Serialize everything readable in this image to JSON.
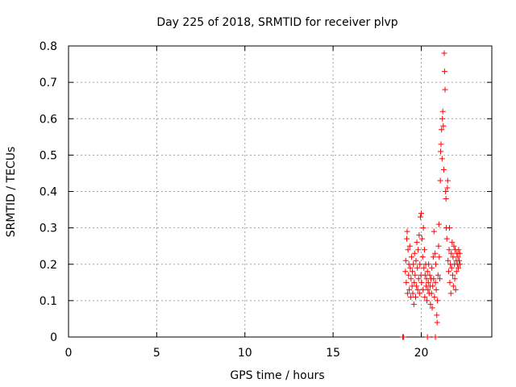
{
  "chart_data": {
    "type": "scatter",
    "title": "Day 225 of 2018, SRMTID for receiver plvp",
    "xlabel": "GPS time / hours",
    "ylabel": "SRMTID / TECUs",
    "xlim": [
      0,
      24
    ],
    "ylim": [
      0,
      0.8
    ],
    "xticks": [
      0,
      5,
      10,
      15,
      20
    ],
    "xtick_labels": [
      "0",
      "5",
      "10",
      "15",
      "20"
    ],
    "yticks": [
      0,
      0.1,
      0.2,
      0.3,
      0.4,
      0.5,
      0.6,
      0.7,
      0.8
    ],
    "ytick_labels": [
      "0",
      "0.1",
      "0.2",
      "0.3",
      "0.4",
      "0.5",
      "0.6",
      "0.7",
      "0.8"
    ],
    "grid": true,
    "marker": "plus",
    "color": "#ff0000",
    "series": [
      {
        "name": "SRMTID",
        "points": [
          [
            18.95,
            0.0
          ],
          [
            19.0,
            0.0
          ],
          [
            20.35,
            0.0
          ],
          [
            20.8,
            0.0
          ],
          [
            19.1,
            0.18
          ],
          [
            19.12,
            0.21
          ],
          [
            19.15,
            0.15
          ],
          [
            19.18,
            0.27
          ],
          [
            19.2,
            0.29
          ],
          [
            19.22,
            0.12
          ],
          [
            19.25,
            0.24
          ],
          [
            19.28,
            0.17
          ],
          [
            19.3,
            0.2
          ],
          [
            19.32,
            0.13
          ],
          [
            19.35,
            0.25
          ],
          [
            19.38,
            0.19
          ],
          [
            19.4,
            0.11
          ],
          [
            19.42,
            0.16
          ],
          [
            19.45,
            0.22
          ],
          [
            19.48,
            0.14
          ],
          [
            19.5,
            0.18
          ],
          [
            19.52,
            0.12
          ],
          [
            19.55,
            0.2
          ],
          [
            19.58,
            0.09
          ],
          [
            19.6,
            0.15
          ],
          [
            19.62,
            0.23
          ],
          [
            19.65,
            0.17
          ],
          [
            19.68,
            0.11
          ],
          [
            19.7,
            0.21
          ],
          [
            19.72,
            0.14
          ],
          [
            19.75,
            0.26
          ],
          [
            19.78,
            0.19
          ],
          [
            19.8,
            0.13
          ],
          [
            19.82,
            0.24
          ],
          [
            19.85,
            0.16
          ],
          [
            19.88,
            0.28
          ],
          [
            19.9,
            0.12
          ],
          [
            19.92,
            0.2
          ],
          [
            19.95,
            0.33
          ],
          [
            19.98,
            0.17
          ],
          [
            20.0,
            0.34
          ],
          [
            20.02,
            0.15
          ],
          [
            20.05,
            0.27
          ],
          [
            20.08,
            0.22
          ],
          [
            20.1,
            0.13
          ],
          [
            20.12,
            0.3
          ],
          [
            20.15,
            0.19
          ],
          [
            20.18,
            0.24
          ],
          [
            20.2,
            0.11
          ],
          [
            20.22,
            0.17
          ],
          [
            20.25,
            0.2
          ],
          [
            20.28,
            0.14
          ],
          [
            20.3,
            0.16
          ],
          [
            20.32,
            0.1
          ],
          [
            20.35,
            0.18
          ],
          [
            20.38,
            0.13
          ],
          [
            20.4,
            0.15
          ],
          [
            20.42,
            0.2
          ],
          [
            20.45,
            0.12
          ],
          [
            20.48,
            0.17
          ],
          [
            20.5,
            0.14
          ],
          [
            20.52,
            0.09
          ],
          [
            20.55,
            0.16
          ],
          [
            20.58,
            0.12
          ],
          [
            20.6,
            0.19
          ],
          [
            20.62,
            0.08
          ],
          [
            20.65,
            0.14
          ],
          [
            20.68,
            0.22
          ],
          [
            20.7,
            0.16
          ],
          [
            20.72,
            0.29
          ],
          [
            20.75,
            0.11
          ],
          [
            20.78,
            0.23
          ],
          [
            20.8,
            0.15
          ],
          [
            20.82,
            0.2
          ],
          [
            20.85,
            0.13
          ],
          [
            20.88,
            0.06
          ],
          [
            20.9,
            0.04
          ],
          [
            20.92,
            0.1
          ],
          [
            20.95,
            0.17
          ],
          [
            20.98,
            0.25
          ],
          [
            21.0,
            0.31
          ],
          [
            21.02,
            0.22
          ],
          [
            21.05,
            0.16
          ],
          [
            21.08,
            0.43
          ],
          [
            21.1,
            0.51
          ],
          [
            21.12,
            0.53
          ],
          [
            21.15,
            0.57
          ],
          [
            21.18,
            0.49
          ],
          [
            21.2,
            0.6
          ],
          [
            21.22,
            0.62
          ],
          [
            21.25,
            0.58
          ],
          [
            21.28,
            0.46
          ],
          [
            21.3,
            0.78
          ],
          [
            21.32,
            0.73
          ],
          [
            21.35,
            0.68
          ],
          [
            21.38,
            0.4
          ],
          [
            21.4,
            0.38
          ],
          [
            21.42,
            0.3
          ],
          [
            21.45,
            0.27
          ],
          [
            21.48,
            0.41
          ],
          [
            21.5,
            0.43
          ],
          [
            21.52,
            0.21
          ],
          [
            21.55,
            0.18
          ],
          [
            21.58,
            0.24
          ],
          [
            21.6,
            0.3
          ],
          [
            21.62,
            0.15
          ],
          [
            21.65,
            0.2
          ],
          [
            21.68,
            0.12
          ],
          [
            21.7,
            0.23
          ],
          [
            21.72,
            0.19
          ],
          [
            21.75,
            0.26
          ],
          [
            21.78,
            0.17
          ],
          [
            21.8,
            0.22
          ],
          [
            21.82,
            0.14
          ],
          [
            21.85,
            0.25
          ],
          [
            21.88,
            0.2
          ],
          [
            21.9,
            0.16
          ],
          [
            21.92,
            0.24
          ],
          [
            21.95,
            0.13
          ],
          [
            21.98,
            0.21
          ],
          [
            22.0,
            0.18
          ],
          [
            22.02,
            0.23
          ],
          [
            22.05,
            0.2
          ],
          [
            22.08,
            0.22
          ],
          [
            22.1,
            0.19
          ],
          [
            22.12,
            0.24
          ],
          [
            22.15,
            0.21
          ],
          [
            22.18,
            0.23
          ],
          [
            22.2,
            0.2
          ]
        ]
      }
    ]
  }
}
